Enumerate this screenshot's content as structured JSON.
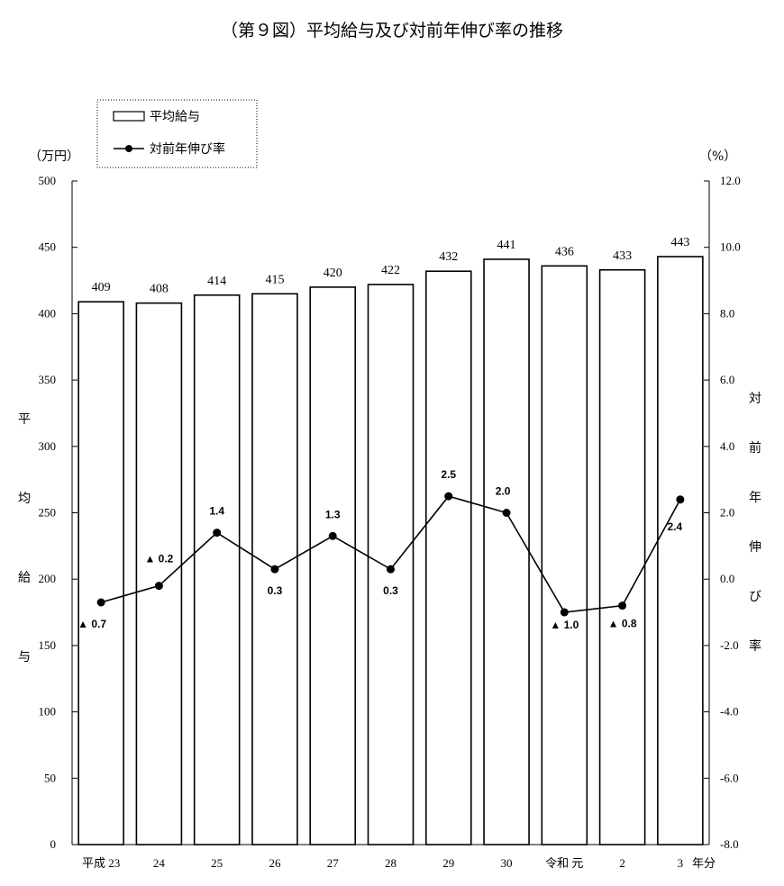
{
  "title": "（第９図）平均給与及び対前年伸び率の推移",
  "left_unit": "（万円）",
  "right_unit": "（%）",
  "left_axis_label": [
    "平",
    "均",
    "給",
    "与"
  ],
  "right_axis_label": [
    "対",
    "前",
    "年",
    "伸",
    "び",
    "率"
  ],
  "x_unit": "年分",
  "legend": {
    "bar": "平均給与",
    "line": "対前年伸び率"
  },
  "left_ticks": [
    "0",
    "50",
    "100",
    "150",
    "200",
    "250",
    "300",
    "350",
    "400",
    "450",
    "500"
  ],
  "right_ticks": [
    "-8.0",
    "-6.0",
    "-4.0",
    "-2.0",
    "0.0",
    "2.0",
    "4.0",
    "6.0",
    "8.0",
    "10.0",
    "12.0"
  ],
  "categories": [
    "平成 23",
    "24",
    "25",
    "26",
    "27",
    "28",
    "29",
    "30",
    "令和 元",
    "2",
    "3"
  ],
  "rate_labels": [
    "▲ 0.7",
    "▲ 0.2",
    "1.4",
    "0.3",
    "1.3",
    "0.3",
    "2.5",
    "2.0",
    "▲ 1.0",
    "▲ 0.8",
    "2.4"
  ],
  "chart_data": {
    "type": "bar",
    "title": "（第９図）平均給与及び対前年伸び率の推移",
    "categories": [
      "平成 23",
      "24",
      "25",
      "26",
      "27",
      "28",
      "29",
      "30",
      "令和 元",
      "2",
      "3"
    ],
    "series": [
      {
        "name": "平均給与",
        "type": "bar",
        "axis": "left",
        "values": [
          409,
          408,
          414,
          415,
          420,
          422,
          432,
          441,
          436,
          433,
          443
        ]
      },
      {
        "name": "対前年伸び率",
        "type": "line",
        "axis": "right",
        "values": [
          -0.7,
          -0.2,
          1.4,
          0.3,
          1.3,
          0.3,
          2.5,
          2.0,
          -1.0,
          -0.8,
          2.4
        ]
      }
    ],
    "ylabel": "平均給与",
    "y2label": "対前年伸び率",
    "ylim": [
      0,
      500
    ],
    "y2lim": [
      -8.0,
      12.0
    ],
    "grid": false,
    "legend_position": "top-left"
  }
}
